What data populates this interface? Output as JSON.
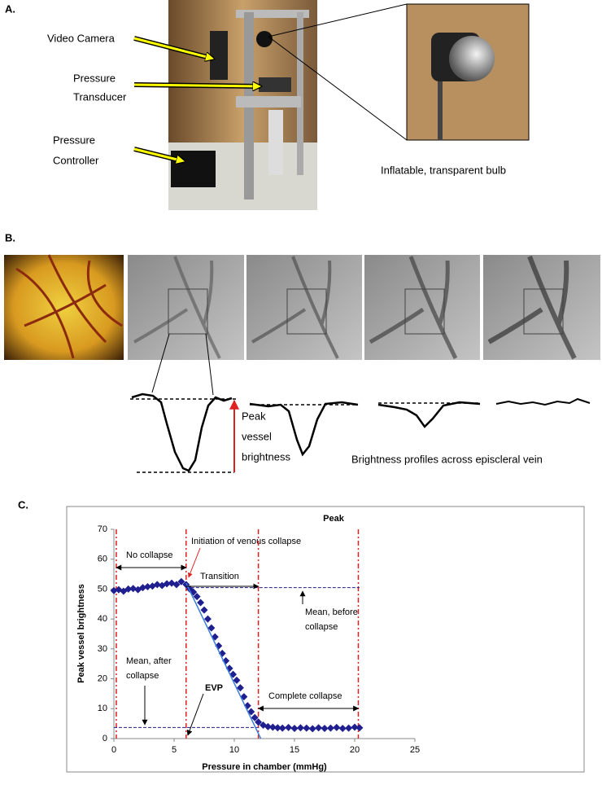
{
  "panel_a": {
    "label": "A.",
    "callouts": [
      [
        "Video Camera"
      ],
      [
        "Pressure",
        "Transducer"
      ],
      [
        "Pressure",
        "Controller"
      ]
    ],
    "inset_caption": "Inflatable, transparent bulb"
  },
  "panel_b": {
    "label": "B.",
    "peak_label": [
      "Peak",
      "vessel",
      "brightness"
    ],
    "caption": "Brightness profiles across episcleral vein"
  },
  "panel_c_label": "C.",
  "chart_data": {
    "type": "scatter",
    "title": "Peak",
    "x_label": "Pressure in chamber (mmHg)",
    "y_label": "Peak vessel brightness",
    "xlim": [
      0,
      25
    ],
    "xticks": [
      0,
      5,
      10,
      15,
      20,
      25
    ],
    "ylim": [
      0,
      70
    ],
    "yticks": [
      0,
      10,
      20,
      30,
      40,
      50,
      60,
      70
    ],
    "color": "#1f1f8f",
    "x": [
      0,
      0.4,
      0.8,
      1.2,
      1.6,
      2.0,
      2.4,
      2.8,
      3.2,
      3.6,
      4.0,
      4.4,
      4.8,
      5.2,
      5.6,
      6.0,
      6.3,
      6.6,
      6.9,
      7.2,
      7.5,
      7.8,
      8.1,
      8.4,
      8.7,
      9.0,
      9.3,
      9.6,
      9.9,
      10.2,
      10.5,
      10.8,
      11.1,
      11.4,
      11.7,
      12.0,
      12.4,
      12.8,
      13.2,
      13.6,
      14.0,
      14.5,
      15.0,
      15.5,
      16.0,
      16.5,
      17.0,
      17.5,
      18.0,
      18.5,
      19.0,
      19.5,
      20.0,
      20.4
    ],
    "values": [
      49.5,
      49.8,
      49.3,
      50,
      50.2,
      49.8,
      50.5,
      50.8,
      51,
      51.5,
      51.2,
      51.8,
      52,
      51.5,
      52.5,
      51.5,
      50,
      49,
      47.5,
      45.5,
      43,
      40,
      37,
      34,
      31,
      28.5,
      26,
      23.5,
      21.5,
      19.5,
      17,
      14,
      11,
      9,
      7,
      5.5,
      4.5,
      4,
      3.8,
      3.6,
      3.5,
      3.7,
      3.4,
      3.6,
      3.5,
      3.3,
      3.6,
      3.4,
      3.5,
      3.7,
      3.4,
      3.5,
      3.8,
      3.6
    ],
    "fit_line": {
      "x": [
        6,
        12.2
      ],
      "values": [
        52,
        0
      ],
      "color": "#3b7dd8"
    },
    "vlines": {
      "x": [
        0.2,
        6,
        12,
        20.3
      ],
      "color": "#e02020"
    },
    "hlines": {
      "values": [
        50.5,
        3.7
      ],
      "x_ranges": [
        [
          6,
          20.4
        ],
        [
          0,
          12
        ]
      ],
      "color": "#1f1f8f"
    },
    "annotations": {
      "no_collapse": "No collapse",
      "initiation": "Initiation of venous collapse",
      "transition": "Transition",
      "mean_before": [
        "Mean, before",
        "collapse"
      ],
      "mean_after": [
        "Mean, after",
        "collapse"
      ],
      "evp": "EVP",
      "complete": "Complete collapse"
    }
  }
}
